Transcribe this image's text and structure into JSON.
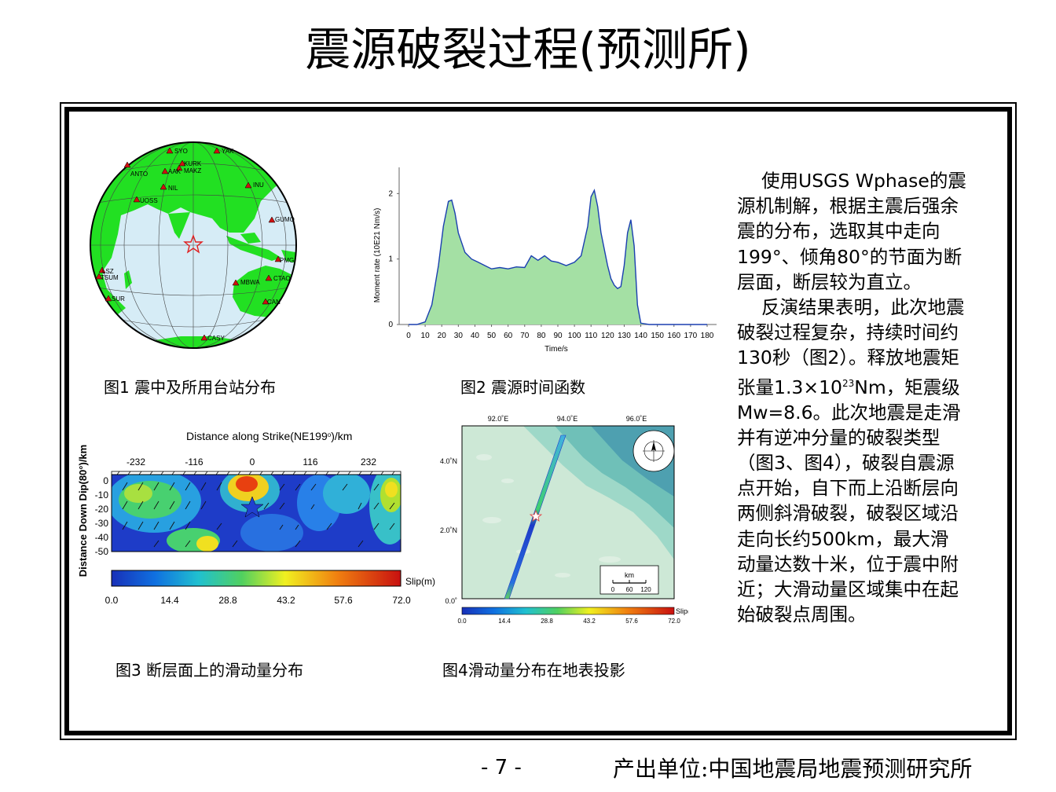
{
  "title": "震源破裂过程(预测所)",
  "captions": {
    "fig1": "图1 震中及所用台站分布",
    "fig2": "图2 震源时间函数",
    "fig3": "图3 断层面上的滑动量分布",
    "fig4": "图4滑动量分布在地表投影"
  },
  "fig1": {
    "stations": [
      "SYO",
      "KURK",
      "MAKZ",
      "ANTO",
      "AAK",
      "NIL",
      "LSZ",
      "TSUM",
      "SUR",
      "UOSS",
      "YAK",
      "INU",
      "GUMO",
      "PMG",
      "MBWA",
      "CTAO",
      "CAN",
      "CASY"
    ]
  },
  "fig2": {
    "ylabel": "Moment rate (10E21 Nm/s)",
    "xlabel": "Time/s",
    "xticks": [
      "0",
      "10",
      "20",
      "30",
      "40",
      "50",
      "60",
      "70",
      "80",
      "90",
      "100",
      "110",
      "120",
      "130",
      "140",
      "150",
      "160",
      "170",
      "180"
    ],
    "yticks": [
      "0",
      "1",
      "2"
    ],
    "fill_color": "#a4e0a4",
    "line_color": "#1a3fb0"
  },
  "fig3": {
    "title": "Distance along Strike(NE199",
    "title_sup": "o",
    "title_end": ")/km",
    "ylabel": "Distance Down Dip(80°)/km",
    "xticks": [
      "-232",
      "-116",
      "0",
      "116",
      "232"
    ],
    "yticks": [
      "0",
      "-10",
      "-20",
      "-30",
      "-40",
      "-50"
    ],
    "colorbar_label": "Slip(m)",
    "colorbar_ticks": [
      "0.0",
      "14.4",
      "28.8",
      "43.2",
      "57.6",
      "72.0"
    ]
  },
  "fig4": {
    "lon_ticks": [
      "92.0˚E",
      "94.0˚E",
      "96.0˚E"
    ],
    "lat_ticks": [
      "4.0˚N",
      "2.0˚N",
      "0.0˚"
    ],
    "scale_title": "km",
    "scale_ticks": [
      "0",
      "60",
      "120"
    ],
    "colorbar_label": "Slip(m)",
    "colorbar_ticks": [
      "0.0",
      "14.4",
      "28.8",
      "43.2",
      "57.6",
      "72.0"
    ]
  },
  "text": {
    "para1": "使用USGS Wphase的震源机制解，根据主震后强余震的分布，选取其中走向199°、倾角80°的节面为断层面，断层较为直立。",
    "para2_a": "反演结果表明，此次地震破裂过程复杂，持续时间约130秒（图2）。释放地震矩张量1.3×10",
    "para2_sup": "23",
    "para2_b": "Nm，矩震级Mw=8.6。此次地震是走滑并有逆冲分量的破裂类型（图3、图4），破裂自震源点开始，自下而上沿断层向两侧斜滑破裂，破裂区域沿走向长约500km，最大滑动量达数十米，位于震中附近；大滑动量区域集中在起始破裂点周围。"
  },
  "page_number": "- 7 -",
  "footer": "产出单位:中国地震局地震预测研究所"
}
